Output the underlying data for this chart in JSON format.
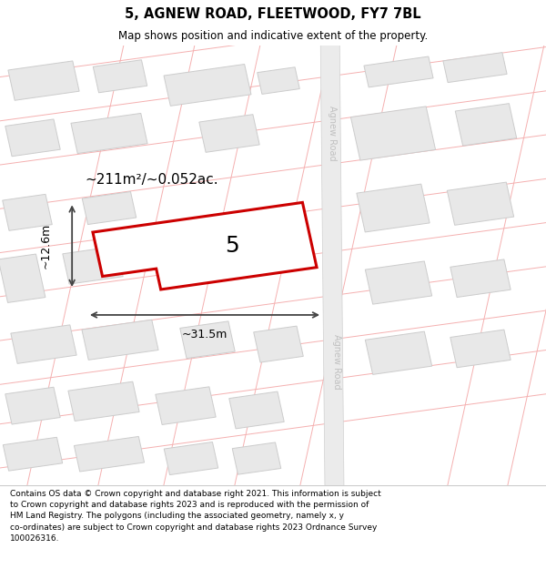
{
  "title": "5, AGNEW ROAD, FLEETWOOD, FY7 7BL",
  "subtitle": "Map shows position and indicative extent of the property.",
  "footer": "Contains OS data © Crown copyright and database right 2021. This information is subject\nto Crown copyright and database rights 2023 and is reproduced with the permission of\nHM Land Registry. The polygons (including the associated geometry, namely x, y\nco-ordinates) are subject to Crown copyright and database rights 2023 Ordnance Survey\n100026316.",
  "area_label": "~211m²/~0.052ac.",
  "width_label": "~31.5m",
  "height_label": "~12.6m",
  "plot_number": "5",
  "bg_color": "#ffffff",
  "property_color": "#cc0000",
  "dim_color": "#444444",
  "block_fill": "#e8e8e8",
  "block_stroke": "#cccccc",
  "pink_road_color": "#f5b0b0",
  "road_fill": "#ebebeb",
  "road_label_color": "#c0c0c0",
  "title_fontsize": 10.5,
  "subtitle_fontsize": 8.5,
  "footer_fontsize": 6.5
}
